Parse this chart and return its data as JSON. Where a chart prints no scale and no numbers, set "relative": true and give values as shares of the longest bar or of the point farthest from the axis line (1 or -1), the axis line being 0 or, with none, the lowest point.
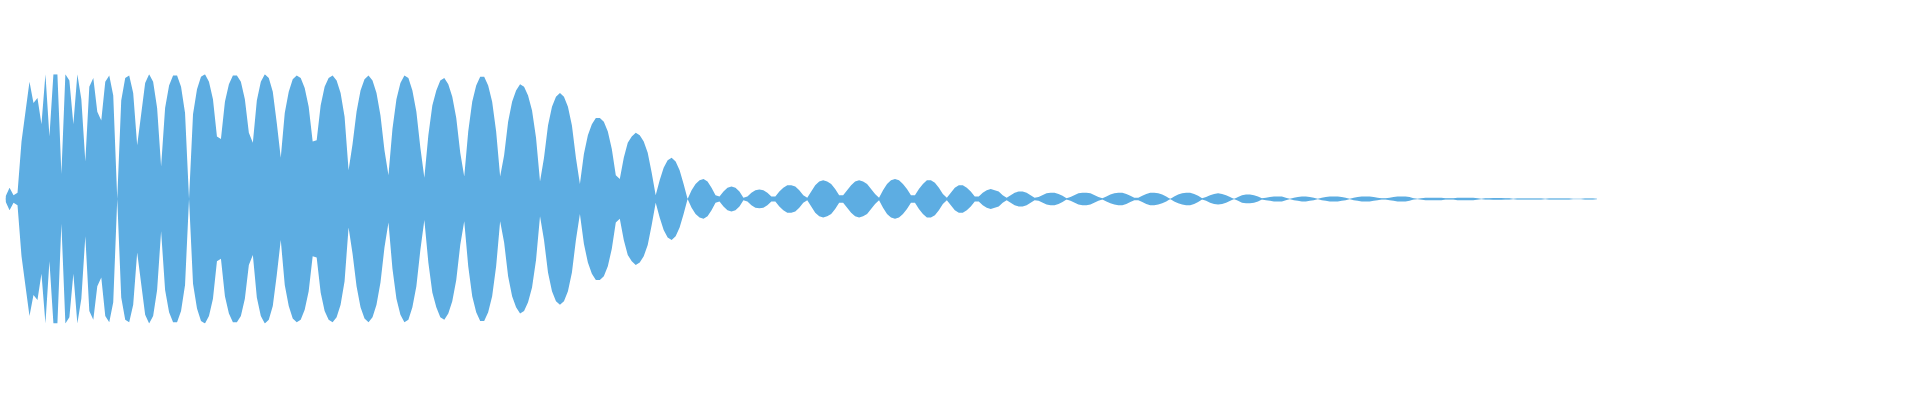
{
  "chart_data": {
    "type": "area",
    "relative": true,
    "categories": [
      null,
      null,
      null,
      null,
      null,
      null,
      null,
      null,
      null,
      null,
      null,
      null,
      null,
      null,
      null,
      null,
      null,
      null,
      null,
      null,
      null,
      null,
      null,
      null,
      null,
      null,
      null,
      null,
      null,
      null,
      null,
      null,
      null,
      null,
      null,
      null,
      null,
      null,
      null,
      null,
      null,
      null,
      null,
      null,
      null,
      null,
      null,
      null,
      null,
      null,
      null,
      null,
      null,
      null,
      null,
      null,
      null,
      null,
      null,
      null,
      null,
      null,
      null,
      null,
      null,
      null,
      null,
      null,
      null,
      null,
      null,
      null,
      null,
      null,
      null,
      null,
      null,
      null,
      null,
      null,
      null,
      null,
      null,
      null,
      null,
      null,
      null,
      null,
      null,
      null,
      null,
      null,
      null,
      null,
      null,
      null,
      null,
      null,
      null,
      null,
      null,
      null,
      null,
      null,
      null,
      null,
      null,
      null,
      null,
      null,
      null,
      null,
      null,
      null,
      null,
      null,
      null,
      null,
      null,
      null,
      null,
      null,
      null,
      null,
      null,
      null,
      null,
      null,
      null,
      null,
      null,
      null,
      null,
      null,
      null,
      null,
      null,
      null,
      null,
      null,
      null,
      null,
      null,
      null,
      null,
      null,
      null,
      null,
      null,
      null,
      null,
      null,
      null,
      null,
      null,
      null,
      null,
      null,
      null,
      null,
      null,
      null,
      null,
      null,
      null,
      null,
      null,
      null,
      null,
      null,
      null,
      null,
      null,
      null,
      null,
      null,
      null,
      null,
      null,
      null,
      null,
      null,
      null,
      null,
      null,
      null,
      null,
      null,
      null,
      null,
      null,
      null,
      null,
      null,
      null,
      null,
      null,
      null,
      null,
      null,
      null,
      null,
      null,
      null,
      null,
      null,
      null,
      null,
      null,
      null,
      null,
      null,
      null,
      null,
      null,
      null,
      null,
      null,
      null,
      null,
      null,
      null,
      null,
      null,
      null,
      null,
      null,
      null,
      null,
      null,
      null,
      null,
      null,
      null,
      null,
      null,
      null,
      null,
      null,
      null,
      null,
      null,
      null,
      null,
      null,
      null,
      null,
      null,
      null,
      null,
      null,
      null,
      null,
      null,
      null,
      null,
      null,
      null,
      null,
      null,
      null,
      null,
      null,
      null,
      null,
      null,
      null,
      null,
      null,
      null,
      null,
      null,
      null,
      null,
      null,
      null,
      null,
      null,
      null,
      null,
      null,
      null,
      null,
      null,
      null,
      null,
      null,
      null,
      null,
      null,
      null,
      null,
      null,
      null,
      null,
      null,
      null,
      null,
      null,
      null,
      null,
      null,
      null,
      null,
      null,
      null,
      null,
      null,
      null,
      null,
      null,
      null,
      null,
      null,
      null,
      null,
      null,
      null,
      null,
      null,
      null,
      null,
      null,
      null,
      null,
      null,
      null,
      null,
      null,
      null,
      null,
      null,
      null,
      null,
      null,
      null,
      null,
      null,
      null,
      null,
      null,
      null,
      null,
      null,
      null,
      null,
      null,
      null,
      null,
      null,
      null,
      null,
      null,
      null,
      null,
      null,
      null,
      null,
      null,
      null,
      null,
      null,
      null,
      null,
      null,
      null,
      null,
      null,
      null,
      null,
      null,
      null,
      null,
      null,
      null,
      null,
      null,
      null,
      null,
      null,
      null,
      null,
      null,
      null,
      null,
      null,
      null,
      null,
      null,
      null,
      null,
      null,
      null,
      null,
      null,
      null,
      null,
      null,
      null,
      null
    ],
    "series": [
      {
        "color": "#5dade2",
        "values": [
          0.02,
          0.09,
          0.03,
          0.05,
          0.46,
          0.7,
          0.94,
          0.77,
          0.81,
          0.6,
          1,
          0.5,
          1,
          1,
          0.2,
          1,
          0.95,
          0.6,
          1,
          0.8,
          0.3,
          0.9,
          0.97,
          0.7,
          0.63,
          0.94,
          0.99,
          0.83,
          0,
          0.79,
          0.97,
          0.99,
          0.85,
          0.43,
          0.68,
          0.93,
          1,
          0.94,
          0.73,
          0.26,
          0.73,
          0.91,
          0.99,
          0.99,
          0.9,
          0.69,
          0,
          0.68,
          0.88,
          0.98,
          1,
          0.94,
          0.8,
          0.5,
          0.48,
          0.78,
          0.92,
          0.99,
          0.99,
          0.94,
          0.8,
          0.53,
          0.45,
          0.79,
          0.94,
          1,
          0.97,
          0.86,
          0.61,
          0.33,
          0.69,
          0.86,
          0.96,
          0.99,
          0.97,
          0.89,
          0.74,
          0.46,
          0.47,
          0.75,
          0.9,
          0.97,
          0.99,
          0.95,
          0.85,
          0.66,
          0.23,
          0.44,
          0.7,
          0.87,
          0.96,
          0.99,
          0.95,
          0.85,
          0.67,
          0.39,
          0.19,
          0.56,
          0.8,
          0.93,
          0.99,
          0.97,
          0.87,
          0.7,
          0.41,
          0.17,
          0.51,
          0.75,
          0.87,
          0.95,
          0.97,
          0.92,
          0.82,
          0.65,
          0.37,
          0.18,
          0.54,
          0.78,
          0.91,
          0.98,
          0.98,
          0.91,
          0.78,
          0.54,
          0.18,
          0.35,
          0.62,
          0.78,
          0.87,
          0.92,
          0.9,
          0.83,
          0.71,
          0.49,
          0.14,
          0.33,
          0.59,
          0.74,
          0.82,
          0.85,
          0.82,
          0.74,
          0.59,
          0.33,
          0.12,
          0.36,
          0.51,
          0.6,
          0.65,
          0.65,
          0.62,
          0.54,
          0.4,
          0.19,
          0.16,
          0.33,
          0.45,
          0.5,
          0.53,
          0.51,
          0.46,
          0.37,
          0.21,
          0.03,
          0.15,
          0.25,
          0.31,
          0.33,
          0.3,
          0.23,
          0.12,
          0,
          0.07,
          0.12,
          0.15,
          0.16,
          0.14,
          0.09,
          0.03,
          0.02,
          0.06,
          0.09,
          0.1,
          0.09,
          0.06,
          0.01,
          0.02,
          0.05,
          0.07,
          0.075,
          0.07,
          0.05,
          0.02,
          0.02,
          0.06,
          0.09,
          0.11,
          0.11,
          0.1,
          0.07,
          0.03,
          0.01,
          0.06,
          0.11,
          0.14,
          0.15,
          0.14,
          0.12,
          0.08,
          0.03,
          0.03,
          0.07,
          0.11,
          0.14,
          0.15,
          0.14,
          0.12,
          0.08,
          0.04,
          0.01,
          0.07,
          0.12,
          0.15,
          0.16,
          0.15,
          0.12,
          0.08,
          0.03,
          0.03,
          0.08,
          0.12,
          0.15,
          0.15,
          0.13,
          0.09,
          0.04,
          0.01,
          0.05,
          0.09,
          0.11,
          0.11,
          0.09,
          0.06,
          0.02,
          0.02,
          0.05,
          0.07,
          0.08,
          0.07,
          0.06,
          0.03,
          0.01,
          0.03,
          0.05,
          0.06,
          0.06,
          0.05,
          0.03,
          0.01,
          0.015,
          0.03,
          0.045,
          0.05,
          0.05,
          0.04,
          0.025,
          0.005,
          0.015,
          0.03,
          0.045,
          0.05,
          0.05,
          0.045,
          0.03,
          0.015,
          0.005,
          0.02,
          0.035,
          0.045,
          0.05,
          0.05,
          0.04,
          0.025,
          0.01,
          0.01,
          0.025,
          0.04,
          0.05,
          0.05,
          0.045,
          0.035,
          0.02,
          0,
          0.02,
          0.035,
          0.045,
          0.05,
          0.05,
          0.04,
          0.025,
          0.005,
          0.015,
          0.03,
          0.04,
          0.045,
          0.04,
          0.03,
          0.015,
          0,
          0.015,
          0.03,
          0.035,
          0.035,
          0.03,
          0.02,
          0.005,
          0.01,
          0.015,
          0.02,
          0.02,
          0.02,
          0.01,
          0,
          0.01,
          0.015,
          0.02,
          0.02,
          0.015,
          0.01,
          0,
          0.01,
          0.015,
          0.02,
          0.02,
          0.02,
          0.015,
          0.01,
          0,
          0.01,
          0.015,
          0.02,
          0.02,
          0.02,
          0.015,
          0.01,
          0.005,
          0.005,
          0.01,
          0.015,
          0.02,
          0.02,
          0.02,
          0.015,
          0.005,
          0,
          0.005,
          0.01,
          0.01,
          0.01,
          0.01,
          0.01,
          0.005,
          0.005,
          0.005,
          0.01,
          0.01,
          0.01,
          0.01,
          0.01,
          0.005,
          0,
          0.005,
          0.005,
          0.007,
          0.007,
          0.007,
          0.005,
          0.005,
          0,
          0.004,
          0.004,
          0.004,
          0.004,
          0.004,
          0.004,
          0.004,
          0,
          0.004,
          0.004,
          0.004,
          0.004,
          0.004,
          0.004,
          0,
          0,
          0,
          0.004,
          0.004,
          0.004,
          0
        ]
      },
      {
        "color": "#5dade2",
        "values": [
          -0.02,
          -0.09,
          -0.03,
          -0.05,
          -0.46,
          -0.7,
          -0.94,
          -0.77,
          -0.81,
          -0.6,
          -1,
          -0.5,
          -1,
          -1,
          -0.2,
          -1,
          -0.95,
          -0.6,
          -1,
          -0.8,
          -0.3,
          -0.9,
          -0.97,
          -0.7,
          -0.63,
          -0.94,
          -0.99,
          -0.83,
          0,
          -0.79,
          -0.97,
          -0.99,
          -0.85,
          -0.43,
          -0.68,
          -0.93,
          -1,
          -0.94,
          -0.73,
          -0.26,
          -0.73,
          -0.91,
          -0.99,
          -0.99,
          -0.9,
          -0.69,
          0,
          -0.68,
          -0.88,
          -0.98,
          -1,
          -0.94,
          -0.8,
          -0.5,
          -0.48,
          -0.78,
          -0.92,
          -0.99,
          -0.99,
          -0.94,
          -0.8,
          -0.53,
          -0.45,
          -0.79,
          -0.94,
          -1,
          -0.97,
          -0.86,
          -0.61,
          -0.33,
          -0.69,
          -0.86,
          -0.96,
          -0.99,
          -0.97,
          -0.89,
          -0.74,
          -0.46,
          -0.47,
          -0.75,
          -0.9,
          -0.97,
          -0.99,
          -0.95,
          -0.85,
          -0.66,
          -0.23,
          -0.44,
          -0.7,
          -0.87,
          -0.96,
          -0.99,
          -0.95,
          -0.85,
          -0.67,
          -0.39,
          -0.19,
          -0.56,
          -0.8,
          -0.93,
          -0.99,
          -0.97,
          -0.87,
          -0.7,
          -0.41,
          -0.17,
          -0.51,
          -0.75,
          -0.87,
          -0.95,
          -0.97,
          -0.92,
          -0.82,
          -0.65,
          -0.37,
          -0.18,
          -0.54,
          -0.78,
          -0.91,
          -0.98,
          -0.98,
          -0.91,
          -0.78,
          -0.54,
          -0.18,
          -0.35,
          -0.62,
          -0.78,
          -0.87,
          -0.92,
          -0.9,
          -0.83,
          -0.71,
          -0.49,
          -0.14,
          -0.33,
          -0.59,
          -0.74,
          -0.82,
          -0.85,
          -0.82,
          -0.74,
          -0.59,
          -0.33,
          -0.12,
          -0.36,
          -0.51,
          -0.6,
          -0.65,
          -0.65,
          -0.62,
          -0.54,
          -0.4,
          -0.19,
          -0.16,
          -0.33,
          -0.45,
          -0.5,
          -0.53,
          -0.51,
          -0.46,
          -0.37,
          -0.21,
          -0.03,
          -0.15,
          -0.25,
          -0.31,
          -0.33,
          -0.3,
          -0.23,
          -0.12,
          0,
          -0.07,
          -0.12,
          -0.15,
          -0.16,
          -0.14,
          -0.09,
          -0.03,
          -0.02,
          -0.06,
          -0.09,
          -0.1,
          -0.09,
          -0.06,
          -0.01,
          -0.02,
          -0.05,
          -0.07,
          -0.075,
          -0.07,
          -0.05,
          -0.02,
          -0.02,
          -0.06,
          -0.09,
          -0.11,
          -0.11,
          -0.1,
          -0.07,
          -0.03,
          -0.01,
          -0.06,
          -0.11,
          -0.14,
          -0.15,
          -0.14,
          -0.12,
          -0.08,
          -0.03,
          -0.03,
          -0.07,
          -0.11,
          -0.14,
          -0.15,
          -0.14,
          -0.12,
          -0.08,
          -0.04,
          -0.01,
          -0.07,
          -0.12,
          -0.15,
          -0.16,
          -0.15,
          -0.12,
          -0.08,
          -0.03,
          -0.03,
          -0.08,
          -0.12,
          -0.15,
          -0.15,
          -0.13,
          -0.09,
          -0.04,
          -0.01,
          -0.05,
          -0.09,
          -0.11,
          -0.11,
          -0.09,
          -0.06,
          -0.02,
          -0.02,
          -0.05,
          -0.07,
          -0.08,
          -0.07,
          -0.06,
          -0.03,
          -0.01,
          -0.03,
          -0.05,
          -0.06,
          -0.06,
          -0.05,
          -0.03,
          -0.01,
          -0.015,
          -0.03,
          -0.045,
          -0.05,
          -0.05,
          -0.04,
          -0.025,
          -0.005,
          -0.015,
          -0.03,
          -0.045,
          -0.05,
          -0.05,
          -0.045,
          -0.03,
          -0.015,
          -0.005,
          -0.02,
          -0.035,
          -0.045,
          -0.05,
          -0.05,
          -0.04,
          -0.025,
          -0.01,
          -0.01,
          -0.025,
          -0.04,
          -0.05,
          -0.05,
          -0.045,
          -0.035,
          -0.02,
          0,
          -0.02,
          -0.035,
          -0.045,
          -0.05,
          -0.05,
          -0.04,
          -0.025,
          -0.005,
          -0.015,
          -0.03,
          -0.04,
          -0.045,
          -0.04,
          -0.03,
          -0.015,
          0,
          -0.015,
          -0.03,
          -0.035,
          -0.035,
          -0.03,
          -0.02,
          -0.005,
          -0.01,
          -0.015,
          -0.02,
          -0.02,
          -0.02,
          -0.01,
          0,
          -0.01,
          -0.015,
          -0.02,
          -0.02,
          -0.015,
          -0.01,
          0,
          -0.01,
          -0.015,
          -0.02,
          -0.02,
          -0.02,
          -0.015,
          -0.01,
          0,
          -0.01,
          -0.015,
          -0.02,
          -0.02,
          -0.02,
          -0.015,
          -0.01,
          -0.005,
          -0.005,
          -0.01,
          -0.015,
          -0.02,
          -0.02,
          -0.02,
          -0.015,
          -0.005,
          0,
          -0.005,
          -0.01,
          -0.01,
          -0.01,
          -0.01,
          -0.01,
          -0.005,
          -0.005,
          -0.005,
          -0.01,
          -0.01,
          -0.01,
          -0.01,
          -0.01,
          -0.005,
          0,
          -0.005,
          -0.005,
          -0.007,
          -0.007,
          -0.007,
          -0.005,
          -0.005,
          0,
          -0.004,
          -0.004,
          -0.004,
          -0.004,
          -0.004,
          -0.004,
          -0.004,
          0,
          -0.004,
          -0.004,
          -0.004,
          -0.004,
          -0.004,
          -0.004,
          0,
          0,
          0,
          -0.004,
          -0.004,
          -0.004,
          0
        ]
      }
    ]
  }
}
